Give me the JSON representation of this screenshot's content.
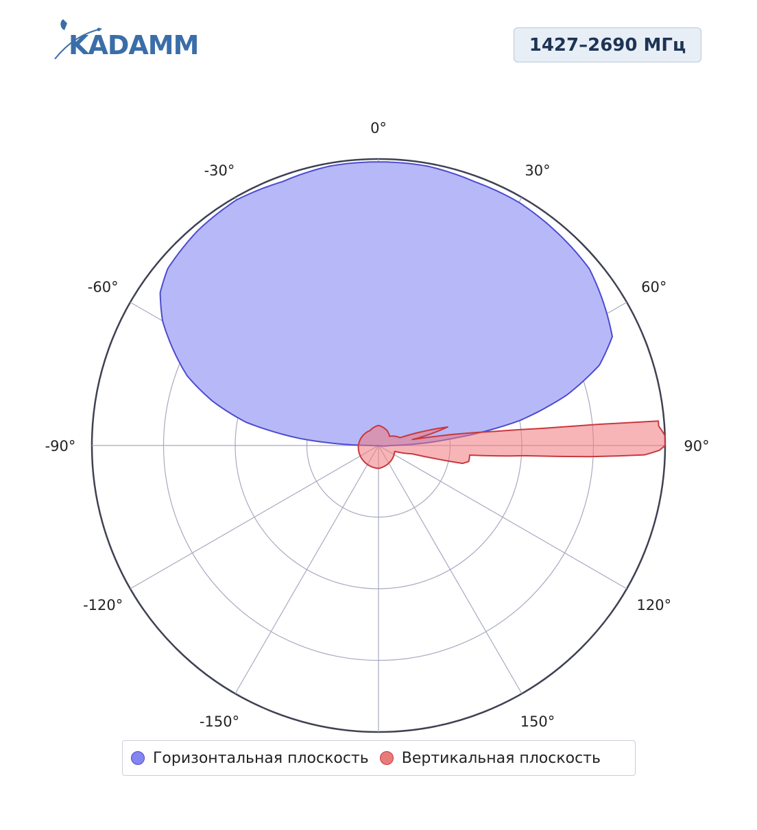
{
  "logo": {
    "text": "KADAMM"
  },
  "badge": {
    "text": "1427–2690 МГц"
  },
  "colors": {
    "horizontal_fill": "#b7b8f7",
    "horizontal_stroke": "#4b4bd0",
    "vertical_fill": "rgba(240,120,125,0.55)",
    "vertical_stroke": "#c8383d",
    "grid": "#a7a9bf",
    "outer_ring": "#3e4152"
  },
  "chart_data": {
    "type": "polar-area",
    "angular_axis": {
      "zero": "top",
      "direction": "clockwise",
      "tick_labels": [
        "0°",
        "30°",
        "60°",
        "90°",
        "120°",
        "150°",
        "-150°",
        "-120°",
        "-90°",
        "-60°",
        "-30°"
      ],
      "ticks": [
        0,
        30,
        60,
        90,
        120,
        150,
        180,
        -150,
        -120,
        -90,
        -60,
        -30
      ]
    },
    "radial_axis": {
      "range": [
        0,
        1
      ],
      "rings": [
        0.25,
        0.5,
        0.75,
        1.0
      ],
      "tick_labels_visible": false
    },
    "series": [
      {
        "name": "Горизонтальная плоскость",
        "color": "#8585f0",
        "points": [
          [
            0,
            0.99
          ],
          [
            10,
            0.99
          ],
          [
            20,
            0.98
          ],
          [
            30,
            0.98
          ],
          [
            40,
            0.97
          ],
          [
            50,
            0.96
          ],
          [
            60,
            0.92
          ],
          [
            65,
            0.9
          ],
          [
            70,
            0.82
          ],
          [
            75,
            0.68
          ],
          [
            80,
            0.5
          ],
          [
            85,
            0.24
          ],
          [
            90,
            0.04
          ],
          [
            100,
            0.0
          ],
          [
            180,
            0.0
          ],
          [
            260,
            0.0
          ],
          [
            270,
            0.02
          ],
          [
            275,
            0.27
          ],
          [
            280,
            0.47
          ],
          [
            285,
            0.6
          ],
          [
            290,
            0.71
          ],
          [
            295,
            0.79
          ],
          [
            300,
            0.87
          ],
          [
            305,
            0.93
          ],
          [
            310,
            0.96
          ],
          [
            320,
            0.98
          ],
          [
            330,
            0.99
          ],
          [
            340,
            0.98
          ],
          [
            350,
            0.99
          ]
        ]
      },
      {
        "name": "Вертикальная плоскость",
        "color": "#e87b7c",
        "points": [
          [
            0,
            0.07
          ],
          [
            30,
            0.06
          ],
          [
            50,
            0.05
          ],
          [
            70,
            0.08
          ],
          [
            75,
            0.25
          ],
          [
            80,
            0.12
          ],
          [
            83,
            0.4
          ],
          [
            84,
            0.57
          ],
          [
            85,
            0.98
          ],
          [
            86,
            0.98
          ],
          [
            87,
            0.99
          ],
          [
            88,
            1.0
          ],
          [
            89,
            1.0
          ],
          [
            90,
            1.0
          ],
          [
            91,
            0.98
          ],
          [
            92,
            0.93
          ],
          [
            93,
            0.74
          ],
          [
            94,
            0.51
          ],
          [
            96,
            0.32
          ],
          [
            100,
            0.32
          ],
          [
            102,
            0.3
          ],
          [
            104,
            0.12
          ],
          [
            110,
            0.06
          ],
          [
            180,
            0.08
          ],
          [
            270,
            0.07
          ],
          [
            330,
            0.06
          ]
        ]
      }
    ]
  },
  "legend": {
    "items": [
      {
        "label": "Горизонтальная плоскость",
        "color": "#8585f0"
      },
      {
        "label": "Вертикальная плоскость",
        "color": "#e87b7c"
      }
    ]
  }
}
